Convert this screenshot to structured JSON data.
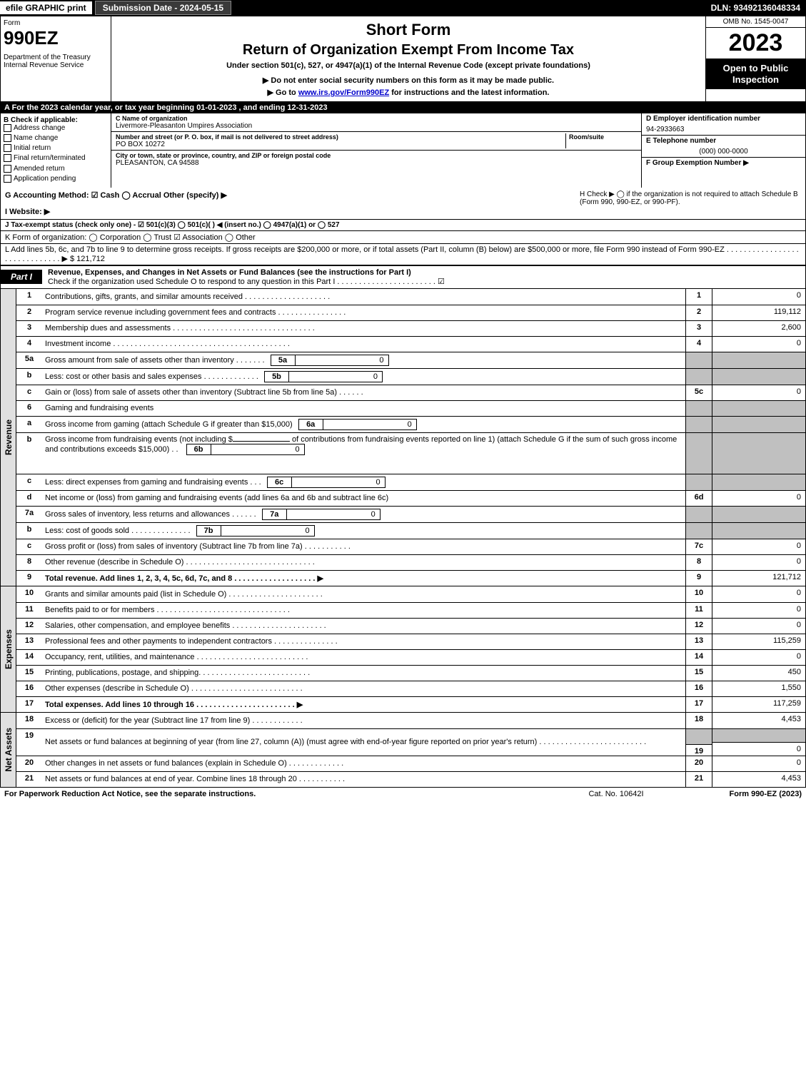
{
  "topbar": {
    "efile": "efile GRAPHIC print",
    "subdate": "Submission Date - 2024-05-15",
    "dln": "DLN: 93492136048334"
  },
  "header": {
    "form": "Form",
    "num": "990EZ",
    "dept": "Department of the Treasury\nInternal Revenue Service",
    "short": "Short Form",
    "title": "Return of Organization Exempt From Income Tax",
    "sub": "Under section 501(c), 527, or 4947(a)(1) of the Internal Revenue Code (except private foundations)",
    "note": "▶ Do not enter social security numbers on this form as it may be made public.",
    "link_pre": "▶ Go to ",
    "link": "www.irs.gov/Form990EZ",
    "link_post": " for instructions and the latest information.",
    "omb": "OMB No. 1545-0047",
    "year": "2023",
    "open": "Open to Public Inspection"
  },
  "sectionA": "A  For the 2023 calendar year, or tax year beginning 01-01-2023 , and ending 12-31-2023",
  "colB": {
    "title": "B  Check if applicable:",
    "items": [
      "Address change",
      "Name change",
      "Initial return",
      "Final return/terminated",
      "Amended return",
      "Application pending"
    ]
  },
  "colC": {
    "name_label": "C Name of organization",
    "name": "Livermore-Pleasanton Umpires Association",
    "street_label": "Number and street (or P. O. box, if mail is not delivered to street address)",
    "room_label": "Room/suite",
    "street": "PO BOX 10272",
    "city_label": "City or town, state or province, country, and ZIP or foreign postal code",
    "city": "PLEASANTON, CA  94588"
  },
  "colD": {
    "ein_label": "D Employer identification number",
    "ein": "94-2933663",
    "tel_label": "E Telephone number",
    "tel": "(000) 000-0000",
    "grp_label": "F Group Exemption Number   ▶"
  },
  "rowG": {
    "g": "G Accounting Method:   ☑ Cash   ◯ Accrual   Other (specify) ▶",
    "h": "H   Check ▶   ◯  if the organization is not required to attach Schedule B (Form 990, 990-EZ, or 990-PF)."
  },
  "rowI": "I Website: ▶",
  "rowJ": "J Tax-exempt status (check only one) -  ☑ 501(c)(3)  ◯ 501(c)(  ) ◀ (insert no.)  ◯ 4947(a)(1) or  ◯ 527",
  "rowK": "K Form of organization:   ◯ Corporation   ◯ Trust   ☑ Association   ◯ Other",
  "rowL": {
    "text": "L Add lines 5b, 6c, and 7b to line 9 to determine gross receipts. If gross receipts are $200,000 or more, or if total assets (Part II, column (B) below) are $500,000 or more, file Form 990 instead of Form 990-EZ . . . . . . . . . . . . . . . . . . . . . . . . . . . . . .  ▶ $ ",
    "val": "121,712"
  },
  "part1": {
    "tab": "Part I",
    "title": "Revenue, Expenses, and Changes in Net Assets or Fund Balances (see the instructions for Part I)",
    "sub": "Check if the organization used Schedule O to respond to any question in this Part I . . . . . . . . . . . . . . . . . . . . . . .  ☑"
  },
  "sidebars": {
    "rev": "Revenue",
    "exp": "Expenses",
    "na": "Net Assets"
  },
  "lines": {
    "l1": {
      "n": "1",
      "d": "Contributions, gifts, grants, and similar amounts received . . . . . . . . . . . . . . . . . . . .",
      "box": "1",
      "v": "0"
    },
    "l2": {
      "n": "2",
      "d": "Program service revenue including government fees and contracts . . . . . . . . . . . . . . . .",
      "box": "2",
      "v": "119,112"
    },
    "l3": {
      "n": "3",
      "d": "Membership dues and assessments . . . . . . . . . . . . . . . . . . . . . . . . . . . . . . . . .",
      "box": "3",
      "v": "2,600"
    },
    "l4": {
      "n": "4",
      "d": "Investment income . . . . . . . . . . . . . . . . . . . . . . . . . . . . . . . . . . . . . . . . .",
      "box": "4",
      "v": "0"
    },
    "l5a": {
      "n": "5a",
      "d": "Gross amount from sale of assets other than inventory . . . . . . .",
      "ib": "5a",
      "iv": "0"
    },
    "l5b": {
      "n": "b",
      "d": "Less: cost or other basis and sales expenses . . . . . . . . . . . . .",
      "ib": "5b",
      "iv": "0"
    },
    "l5c": {
      "n": "c",
      "d": "Gain or (loss) from sale of assets other than inventory (Subtract line 5b from line 5a) . . . . . .",
      "box": "5c",
      "v": "0"
    },
    "l6": {
      "n": "6",
      "d": "Gaming and fundraising events"
    },
    "l6a": {
      "n": "a",
      "d": "Gross income from gaming (attach Schedule G if greater than $15,000)",
      "ib": "6a",
      "iv": "0"
    },
    "l6b": {
      "n": "b",
      "d1": "Gross income from fundraising events (not including $",
      "d2": " of contributions from fundraising events reported on line 1) (attach Schedule G if the sum of such gross income and contributions exceeds $15,000)   .   .",
      "ib": "6b",
      "iv": "0"
    },
    "l6c": {
      "n": "c",
      "d": "Less: direct expenses from gaming and fundraising events   .   .   .",
      "ib": "6c",
      "iv": "0"
    },
    "l6d": {
      "n": "d",
      "d": "Net income or (loss) from gaming and fundraising events (add lines 6a and 6b and subtract line 6c)",
      "box": "6d",
      "v": "0"
    },
    "l7a": {
      "n": "7a",
      "d": "Gross sales of inventory, less returns and allowances . . . . . .",
      "ib": "7a",
      "iv": "0"
    },
    "l7b": {
      "n": "b",
      "d": "Less: cost of goods sold        .   .   .   .   .   .   .   .   .   .   .   .   .   .",
      "ib": "7b",
      "iv": "0"
    },
    "l7c": {
      "n": "c",
      "d": "Gross profit or (loss) from sales of inventory (Subtract line 7b from line 7a) . . . . . . . . . . .",
      "box": "7c",
      "v": "0"
    },
    "l8": {
      "n": "8",
      "d": "Other revenue (describe in Schedule O) . . . . . . . . . . . . . . . . . . . . . . . . . . . . . .",
      "box": "8",
      "v": "0"
    },
    "l9": {
      "n": "9",
      "d": "Total revenue. Add lines 1, 2, 3, 4, 5c, 6d, 7c, and 8  . . . . . . . . . . . . . . . . . . .  ▶",
      "box": "9",
      "v": "121,712"
    },
    "l10": {
      "n": "10",
      "d": "Grants and similar amounts paid (list in Schedule O) . . . . . . . . . . . . . . . . . . . . . .",
      "box": "10",
      "v": "0"
    },
    "l11": {
      "n": "11",
      "d": "Benefits paid to or for members    . . . . . . . . . . . . . . . . . . . . . . . . . . . . . . .",
      "box": "11",
      "v": "0"
    },
    "l12": {
      "n": "12",
      "d": "Salaries, other compensation, and employee benefits . . . . . . . . . . . . . . . . . . . . . .",
      "box": "12",
      "v": "0"
    },
    "l13": {
      "n": "13",
      "d": "Professional fees and other payments to independent contractors . . . . . . . . . . . . . . .",
      "box": "13",
      "v": "115,259"
    },
    "l14": {
      "n": "14",
      "d": "Occupancy, rent, utilities, and maintenance . . . . . . . . . . . . . . . . . . . . . . . . . .",
      "box": "14",
      "v": "0"
    },
    "l15": {
      "n": "15",
      "d": "Printing, publications, postage, and shipping. . . . . . . . . . . . . . . . . . . . . . . . . .",
      "box": "15",
      "v": "450"
    },
    "l16": {
      "n": "16",
      "d": "Other expenses (describe in Schedule O)    . . . . . . . . . . . . . . . . . . . . . . . . . .",
      "box": "16",
      "v": "1,550"
    },
    "l17": {
      "n": "17",
      "d": "Total expenses. Add lines 10 through 16    . . . . . . . . . . . . . . . . . . . . . . .   ▶",
      "box": "17",
      "v": "117,259"
    },
    "l18": {
      "n": "18",
      "d": "Excess or (deficit) for the year (Subtract line 17 from line 9)       .   .   .   .   .   .   .   .   .   .   .   .",
      "box": "18",
      "v": "4,453"
    },
    "l19": {
      "n": "19",
      "d": "Net assets or fund balances at beginning of year (from line 27, column (A)) (must agree with end-of-year figure reported on prior year's return) . . . . . . . . . . . . . . . . . . . . . . . . .",
      "box": "19",
      "v": "0"
    },
    "l20": {
      "n": "20",
      "d": "Other changes in net assets or fund balances (explain in Schedule O) . . . . . . . . . . . . .",
      "box": "20",
      "v": "0"
    },
    "l21": {
      "n": "21",
      "d": "Net assets or fund balances at end of year. Combine lines 18 through 20 . . . . . . . . . . .",
      "box": "21",
      "v": "4,453"
    }
  },
  "footer": {
    "left": "For Paperwork Reduction Act Notice, see the separate instructions.",
    "mid": "Cat. No. 10642I",
    "right": "Form 990-EZ (2023)"
  },
  "colors": {
    "black": "#000000",
    "white": "#ffffff",
    "darkgray": "#3a3a3a",
    "shade": "#c0c0c0",
    "sidebar": "#e0e0e0",
    "link": "#0000cc"
  }
}
